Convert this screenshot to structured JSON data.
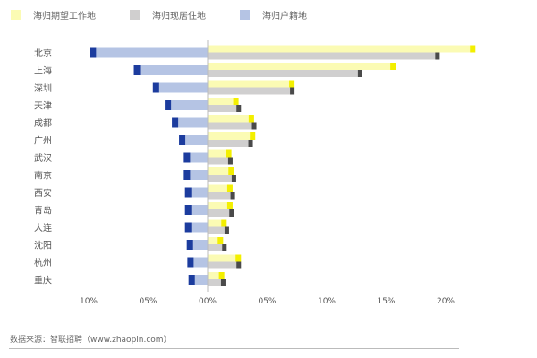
{
  "chart_data": {
    "type": "bar",
    "orientation": "horizontal-butterfly",
    "categories": [
      "北京",
      "上海",
      "深圳",
      "天津",
      "成都",
      "广州",
      "武汉",
      "南京",
      "西安",
      "青岛",
      "大连",
      "沈阳",
      "杭州",
      "重庆"
    ],
    "series": [
      {
        "name": "海归期望工作地",
        "side": "right",
        "values": [
          22.5,
          15.8,
          7.3,
          2.6,
          3.9,
          4.0,
          2.0,
          2.2,
          2.1,
          2.1,
          1.6,
          1.3,
          2.8,
          1.4
        ],
        "color": "#fbfbb4",
        "cap_color": "#f3ef00"
      },
      {
        "name": "海归现居住地",
        "side": "right",
        "values": [
          19.5,
          13.0,
          7.3,
          2.8,
          4.1,
          3.8,
          2.1,
          2.4,
          2.3,
          2.2,
          1.8,
          1.6,
          2.8,
          1.5
        ],
        "color": "#d0cfcf",
        "cap_color": "#4a4a4a"
      },
      {
        "name": "海归户籍地",
        "side": "left",
        "values": [
          9.9,
          6.2,
          4.6,
          3.6,
          3.0,
          2.4,
          2.0,
          2.0,
          1.9,
          1.9,
          1.9,
          1.75,
          1.7,
          1.6
        ],
        "color": "#b5c4e4",
        "cap_color": "#1c3c9e"
      }
    ],
    "x_ticks_left": [
      "10%",
      "05%"
    ],
    "x_ticks_right": [
      "00%",
      "05%",
      "10%",
      "15%",
      "20%"
    ],
    "xlim": [
      -10,
      22.5
    ],
    "legend_position": "top-left",
    "grid": false
  },
  "source": "数据来源：智联招聘（www.zhaopin.com）"
}
